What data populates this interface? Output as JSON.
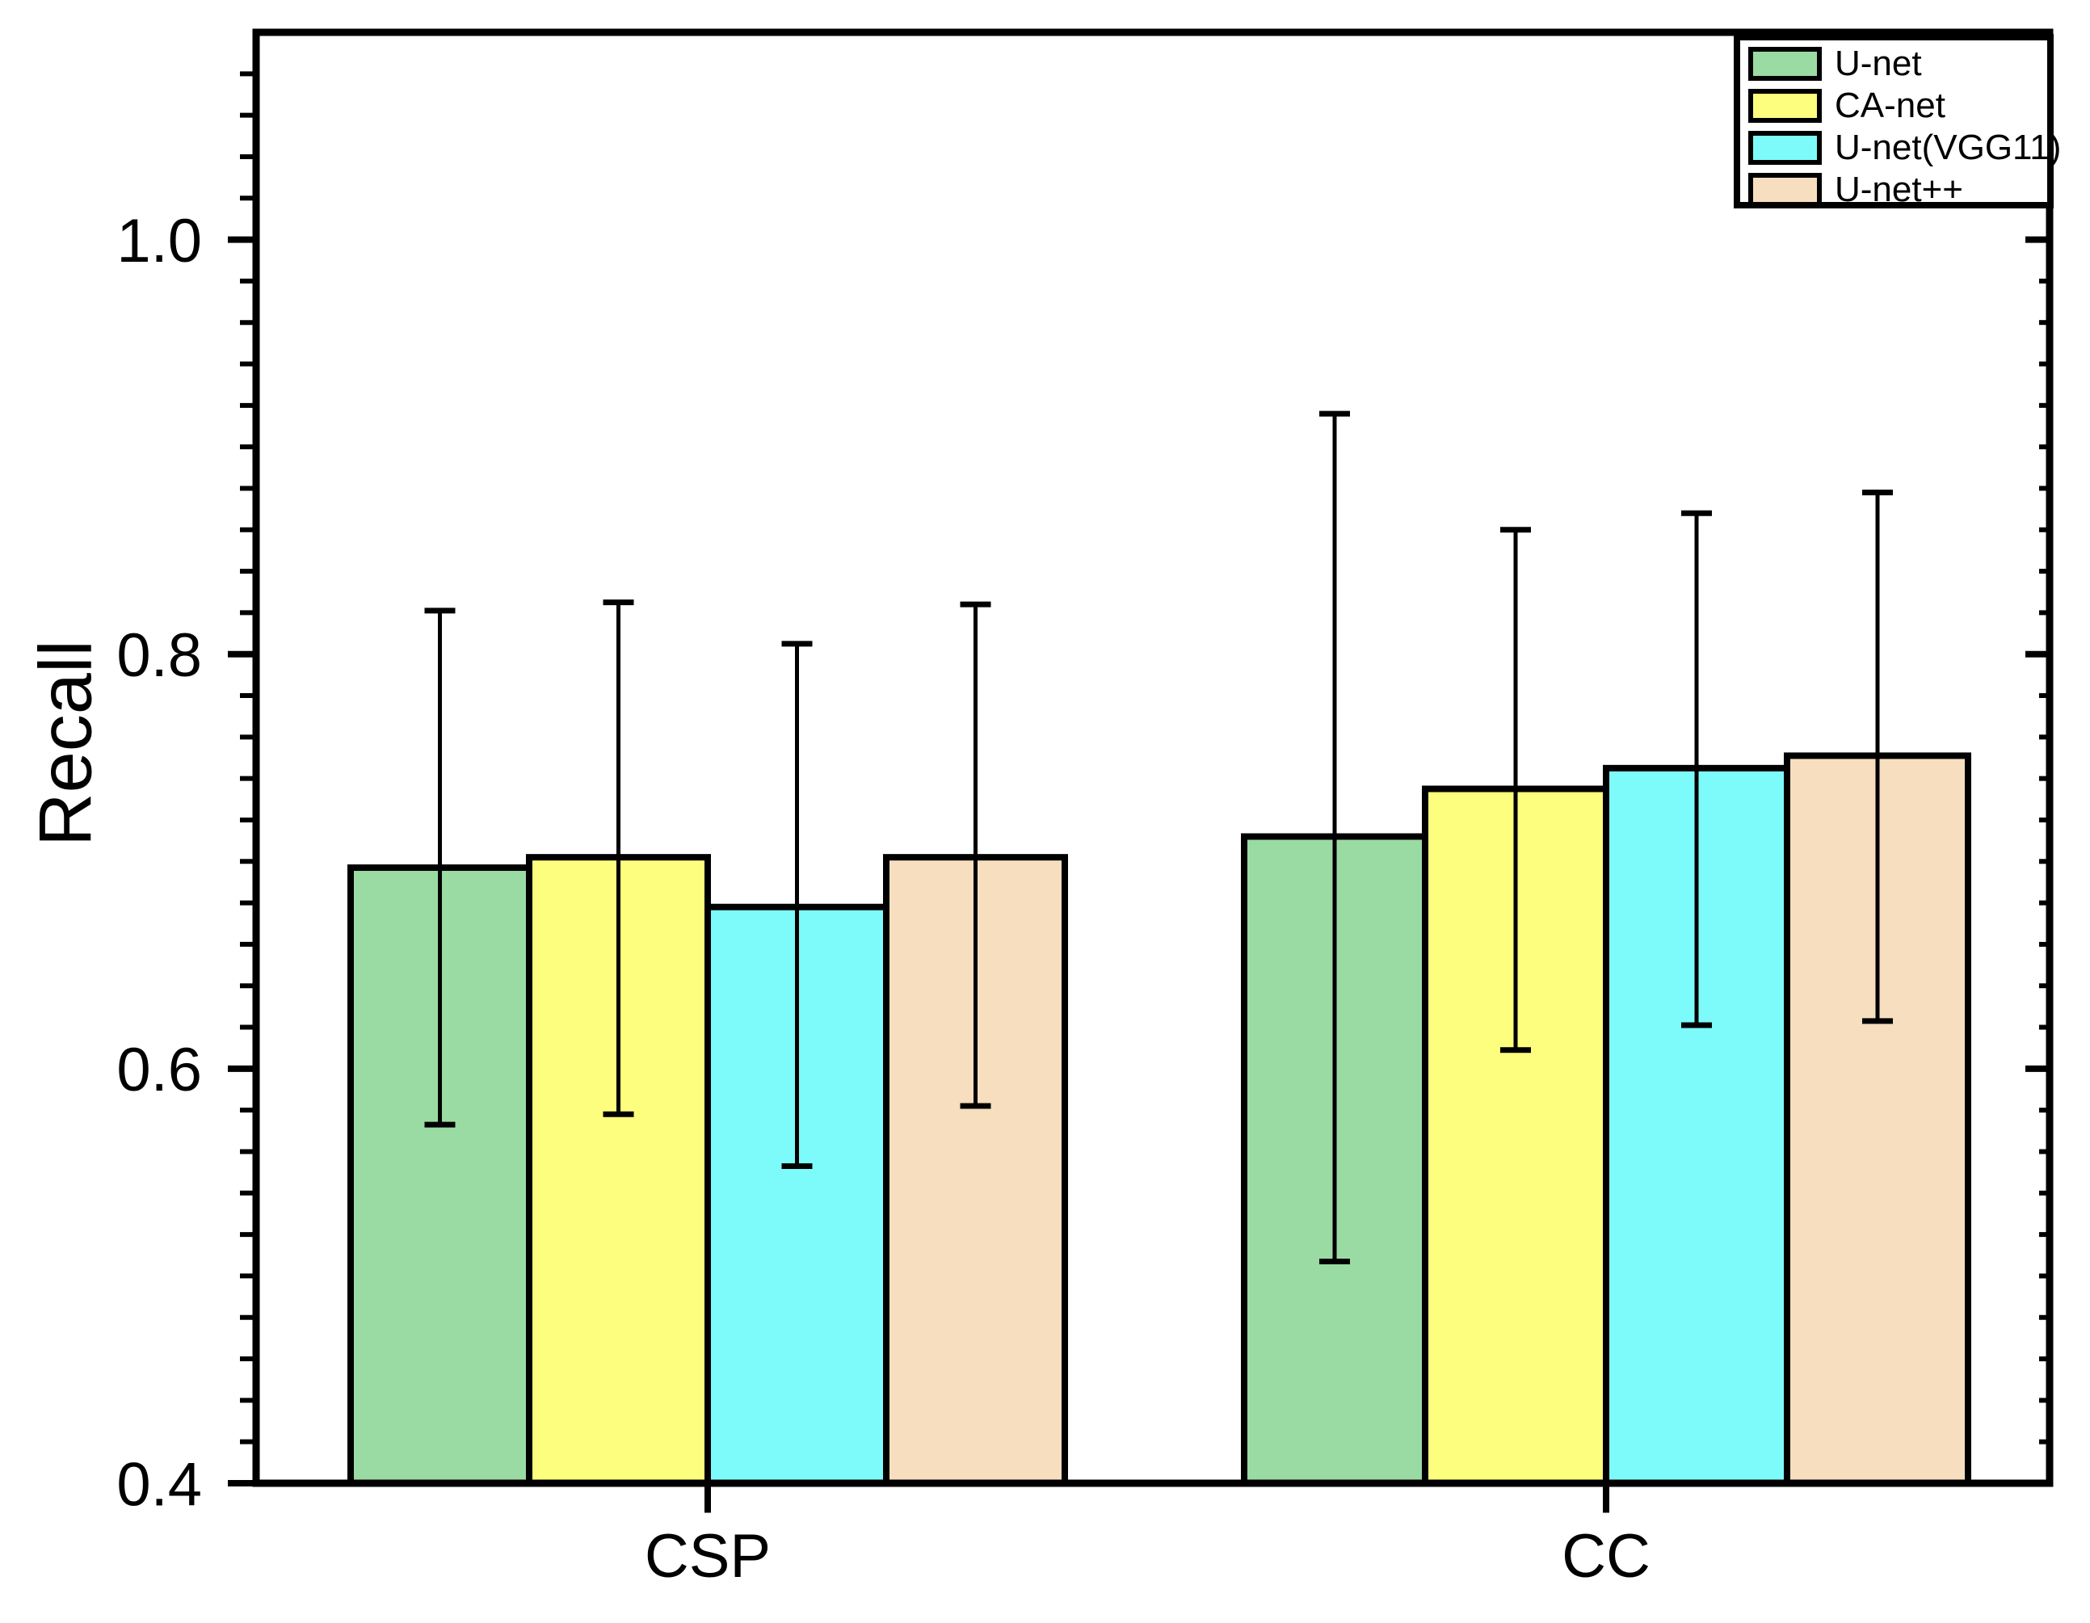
{
  "chart_data": {
    "type": "bar",
    "title": "",
    "ylabel": "Recall",
    "xlabel": "",
    "categories": [
      "CSP",
      "CC"
    ],
    "series": [
      {
        "name": "U-net",
        "color": "#9ADBA3",
        "values": [
          0.697,
          0.712
        ],
        "error_cap_low": [
          0.573,
          0.507
        ],
        "error_cap_high": [
          0.821,
          0.916
        ]
      },
      {
        "name": "CA-net",
        "color": "#FDFD7E",
        "values": [
          0.702,
          0.735
        ],
        "error_cap_low": [
          0.578,
          0.609
        ],
        "error_cap_high": [
          0.825,
          0.86
        ]
      },
      {
        "name": "U-net(VGG11)",
        "color": "#7DFBFB",
        "values": [
          0.678,
          0.745
        ],
        "error_cap_low": [
          0.553,
          0.621
        ],
        "error_cap_high": [
          0.805,
          0.868
        ]
      },
      {
        "name": "U-net++",
        "color": "#F6DEBE",
        "values": [
          0.702,
          0.751
        ],
        "error_cap_low": [
          0.582,
          0.623
        ],
        "error_cap_high": [
          0.824,
          0.878
        ]
      }
    ],
    "ylim": [
      0.4,
      1.1
    ],
    "ytick_values": [
      0.4,
      0.6,
      0.8,
      1.0
    ],
    "ytick_labels": [
      "0.4",
      "0.6",
      "0.8",
      "1.0"
    ],
    "minor_tick_step": 0.02,
    "grid": false,
    "legend_position": "top-right",
    "bar_edge_color": "#000000",
    "error_bar_color": "#000000",
    "axis_color": "#000000",
    "text_color": "#000000"
  }
}
